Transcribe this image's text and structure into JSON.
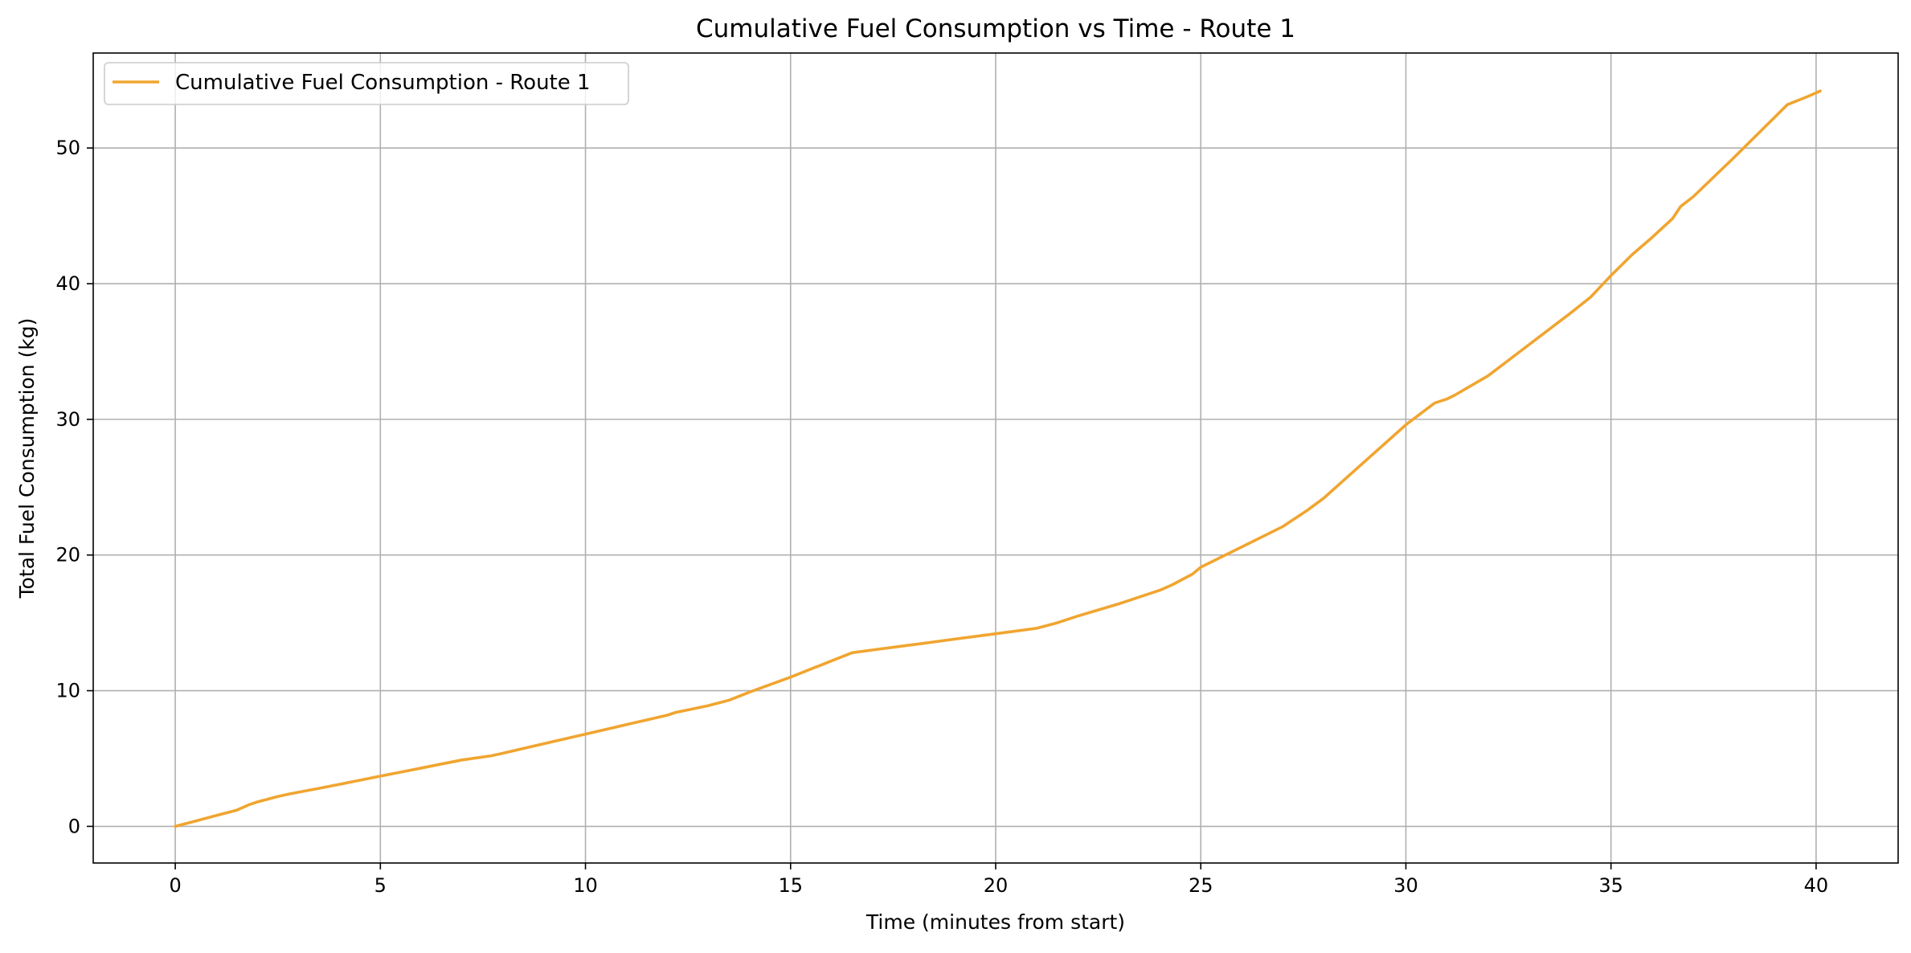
{
  "chart_data": {
    "type": "line",
    "title": "Cumulative Fuel Consumption vs Time - Route 1",
    "xlabel": "Time (minutes from start)",
    "ylabel": "Total Fuel Consumption (kg)",
    "xlim": [
      -2,
      42
    ],
    "ylim": [
      -2.7,
      57.0
    ],
    "xticks": [
      0,
      5,
      10,
      15,
      20,
      25,
      30,
      35,
      40
    ],
    "yticks": [
      0,
      10,
      20,
      30,
      40,
      50
    ],
    "grid": true,
    "legend_position": "top-left",
    "series": [
      {
        "name": "Cumulative Fuel Consumption - Route 1",
        "color": "#f0a530",
        "x": [
          0,
          0.5,
          1.0,
          1.5,
          1.8,
          2.0,
          2.5,
          2.8,
          3.5,
          4.0,
          4.5,
          5.0,
          5.5,
          6.0,
          6.5,
          7.0,
          7.7,
          8.0,
          9.0,
          10.0,
          11.0,
          12.0,
          12.2,
          13.0,
          13.5,
          14.0,
          15.0,
          16.0,
          16.5,
          17.0,
          18.0,
          19.0,
          20.0,
          21.0,
          21.5,
          22.0,
          23.0,
          24.0,
          24.3,
          24.8,
          25.0,
          26.0,
          27.0,
          27.6,
          28.0,
          29.0,
          30.0,
          30.7,
          31.0,
          31.2,
          32.0,
          33.0,
          34.0,
          34.5,
          35.0,
          35.5,
          36.0,
          36.5,
          36.7,
          37.0,
          38.0,
          39.0,
          39.3,
          39.8,
          40.1
        ],
        "y": [
          0,
          0.4,
          0.8,
          1.2,
          1.6,
          1.8,
          2.2,
          2.4,
          2.8,
          3.1,
          3.4,
          3.7,
          4.0,
          4.3,
          4.6,
          4.9,
          5.2,
          5.4,
          6.1,
          6.8,
          7.5,
          8.2,
          8.4,
          8.9,
          9.3,
          9.9,
          11.0,
          12.2,
          12.8,
          13.0,
          13.4,
          13.8,
          14.2,
          14.6,
          15.0,
          15.5,
          16.4,
          17.4,
          17.8,
          18.6,
          19.1,
          20.6,
          22.1,
          23.3,
          24.2,
          26.9,
          29.6,
          31.2,
          31.5,
          31.8,
          33.2,
          35.5,
          37.8,
          39.0,
          40.6,
          42.1,
          43.4,
          44.8,
          45.7,
          46.4,
          49.3,
          52.3,
          53.2,
          53.8,
          54.2
        ]
      }
    ]
  }
}
